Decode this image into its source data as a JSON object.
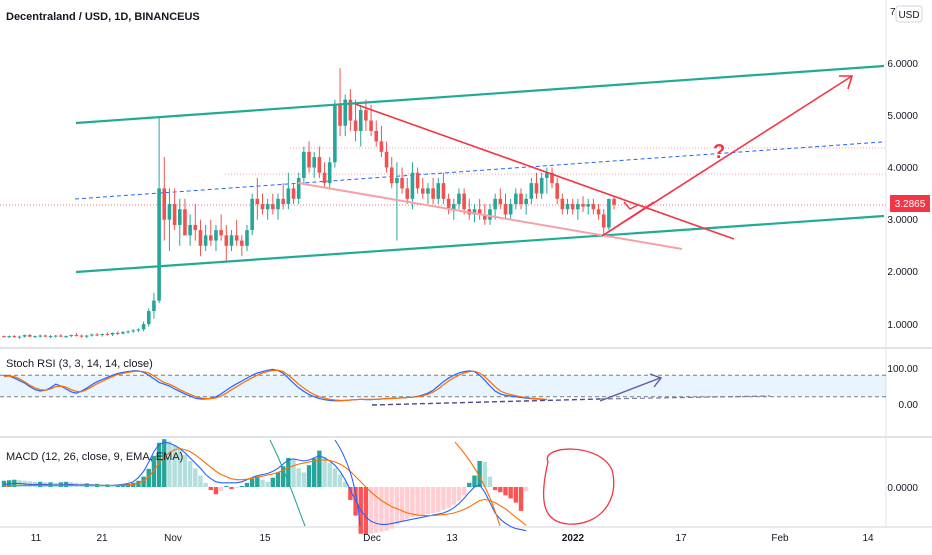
{
  "chart_data": [
    {
      "type": "candlestick",
      "title": "Decentraland / USD, 1D, BINANCEUS",
      "currency_label": "USD",
      "y_ticks": [
        "7",
        "6.0000",
        "5.0000",
        "4.0000",
        "3.0000",
        "2.0000",
        "1.0000"
      ],
      "ylim": [
        0.5,
        7
      ],
      "last_price": "3.2865",
      "x_ticks": [
        "11",
        "21",
        "Nov",
        "15",
        "Dec",
        "13",
        "2022",
        "17",
        "Feb",
        "14"
      ],
      "grid": false,
      "colors": {
        "up": "#26a69a",
        "down": "#ef5350",
        "channel": "#22ab94",
        "triangle": "#f23645",
        "triangle_lower": "#f7a1a7",
        "mid_dash": "#2962ff",
        "price_label_bg": "#f23645"
      },
      "candles": [
        [
          0.77,
          0.78,
          0.74,
          0.76
        ],
        [
          0.76,
          0.78,
          0.73,
          0.77
        ],
        [
          0.77,
          0.79,
          0.74,
          0.75
        ],
        [
          0.75,
          0.78,
          0.72,
          0.76
        ],
        [
          0.76,
          0.8,
          0.74,
          0.79
        ],
        [
          0.79,
          0.81,
          0.75,
          0.76
        ],
        [
          0.76,
          0.78,
          0.73,
          0.77
        ],
        [
          0.77,
          0.8,
          0.74,
          0.78
        ],
        [
          0.78,
          0.8,
          0.75,
          0.76
        ],
        [
          0.76,
          0.79,
          0.73,
          0.77
        ],
        [
          0.77,
          0.79,
          0.74,
          0.78
        ],
        [
          0.78,
          0.81,
          0.75,
          0.76
        ],
        [
          0.76,
          0.78,
          0.73,
          0.77
        ],
        [
          0.77,
          0.8,
          0.75,
          0.79
        ],
        [
          0.79,
          0.83,
          0.76,
          0.78
        ],
        [
          0.78,
          0.8,
          0.74,
          0.76
        ],
        [
          0.76,
          0.79,
          0.73,
          0.78
        ],
        [
          0.78,
          0.82,
          0.76,
          0.8
        ],
        [
          0.8,
          0.83,
          0.77,
          0.79
        ],
        [
          0.79,
          0.82,
          0.76,
          0.81
        ],
        [
          0.81,
          0.84,
          0.78,
          0.8
        ],
        [
          0.8,
          0.84,
          0.77,
          0.83
        ],
        [
          0.83,
          0.86,
          0.79,
          0.82
        ],
        [
          0.82,
          0.86,
          0.8,
          0.85
        ],
        [
          0.85,
          0.88,
          0.82,
          0.86
        ],
        [
          0.86,
          0.9,
          0.83,
          0.88
        ],
        [
          0.88,
          0.92,
          0.85,
          0.9
        ],
        [
          0.9,
          1.05,
          0.86,
          1.0
        ],
        [
          1.0,
          1.3,
          0.95,
          1.25
        ],
        [
          1.25,
          1.6,
          1.1,
          1.45
        ],
        [
          1.45,
          4.95,
          1.4,
          3.6
        ],
        [
          3.6,
          4.2,
          2.6,
          3.0
        ],
        [
          3.0,
          3.6,
          2.4,
          3.3
        ],
        [
          3.3,
          3.6,
          2.8,
          2.9
        ],
        [
          2.9,
          3.4,
          2.5,
          3.2
        ],
        [
          3.2,
          3.4,
          2.7,
          2.7
        ],
        [
          2.7,
          3.1,
          2.5,
          2.9
        ],
        [
          2.9,
          3.3,
          2.6,
          2.8
        ],
        [
          2.8,
          3.0,
          2.3,
          2.5
        ],
        [
          2.5,
          2.9,
          2.4,
          2.7
        ],
        [
          2.7,
          3.0,
          2.5,
          2.6
        ],
        [
          2.6,
          2.9,
          2.4,
          2.8
        ],
        [
          2.8,
          3.1,
          2.6,
          2.7
        ],
        [
          2.7,
          2.9,
          2.2,
          2.5
        ],
        [
          2.5,
          2.8,
          2.4,
          2.7
        ],
        [
          2.7,
          3.0,
          2.5,
          2.6
        ],
        [
          2.6,
          2.7,
          2.3,
          2.5
        ],
        [
          2.5,
          2.9,
          2.4,
          2.8
        ],
        [
          2.8,
          3.5,
          2.7,
          3.4
        ],
        [
          3.4,
          3.8,
          3.0,
          3.3
        ],
        [
          3.3,
          3.5,
          3.1,
          3.2
        ],
        [
          3.2,
          3.4,
          3.0,
          3.3
        ],
        [
          3.3,
          3.5,
          3.1,
          3.2
        ],
        [
          3.2,
          3.5,
          3.0,
          3.4
        ],
        [
          3.4,
          3.7,
          3.2,
          3.3
        ],
        [
          3.3,
          3.9,
          3.2,
          3.6
        ],
        [
          3.6,
          3.7,
          3.3,
          3.4
        ],
        [
          3.4,
          3.9,
          3.3,
          3.8
        ],
        [
          3.8,
          4.4,
          3.7,
          4.3
        ],
        [
          4.3,
          4.5,
          3.9,
          4.0
        ],
        [
          4.0,
          4.3,
          3.8,
          4.2
        ],
        [
          4.2,
          4.4,
          3.8,
          3.9
        ],
        [
          3.9,
          4.1,
          3.6,
          3.7
        ],
        [
          3.7,
          4.2,
          3.6,
          4.1
        ],
        [
          4.1,
          5.3,
          4.0,
          5.2
        ],
        [
          5.2,
          5.9,
          4.6,
          4.8
        ],
        [
          4.8,
          5.4,
          4.6,
          5.3
        ],
        [
          5.3,
          5.5,
          4.7,
          4.9
        ],
        [
          4.9,
          5.3,
          4.5,
          4.7
        ],
        [
          4.7,
          5.2,
          4.4,
          5.1
        ],
        [
          5.1,
          5.3,
          4.7,
          4.9
        ],
        [
          4.9,
          5.2,
          4.6,
          4.7
        ],
        [
          4.7,
          4.9,
          4.4,
          4.5
        ],
        [
          4.5,
          4.8,
          4.2,
          4.3
        ],
        [
          4.3,
          4.5,
          3.9,
          4.0
        ],
        [
          4.0,
          4.2,
          3.6,
          3.7
        ],
        [
          3.7,
          4.1,
          2.6,
          3.8
        ],
        [
          3.8,
          4.0,
          3.5,
          3.6
        ],
        [
          3.6,
          3.8,
          3.3,
          3.4
        ],
        [
          3.4,
          4.1,
          3.2,
          3.9
        ],
        [
          3.9,
          4.0,
          3.5,
          3.6
        ],
        [
          3.6,
          3.8,
          3.4,
          3.5
        ],
        [
          3.5,
          3.7,
          3.3,
          3.6
        ],
        [
          3.6,
          3.8,
          3.3,
          3.4
        ],
        [
          3.4,
          3.8,
          3.3,
          3.7
        ],
        [
          3.7,
          3.9,
          3.3,
          3.4
        ],
        [
          3.4,
          3.5,
          3.1,
          3.2
        ],
        [
          3.2,
          3.4,
          3.0,
          3.3
        ],
        [
          3.3,
          3.6,
          3.2,
          3.5
        ],
        [
          3.5,
          3.6,
          3.1,
          3.2
        ],
        [
          3.2,
          3.4,
          3.0,
          3.1
        ],
        [
          3.1,
          3.3,
          2.95,
          3.2
        ],
        [
          3.2,
          3.4,
          3.0,
          3.1
        ],
        [
          3.1,
          3.3,
          2.9,
          3.0
        ],
        [
          3.0,
          3.3,
          2.9,
          3.2
        ],
        [
          3.2,
          3.5,
          3.0,
          3.4
        ],
        [
          3.4,
          3.6,
          3.2,
          3.3
        ],
        [
          3.3,
          3.5,
          3.0,
          3.1
        ],
        [
          3.1,
          3.4,
          3.0,
          3.3
        ],
        [
          3.3,
          3.6,
          3.2,
          3.5
        ],
        [
          3.5,
          3.6,
          3.2,
          3.3
        ],
        [
          3.3,
          3.5,
          3.1,
          3.4
        ],
        [
          3.4,
          3.8,
          3.3,
          3.7
        ],
        [
          3.7,
          3.9,
          3.4,
          3.5
        ],
        [
          3.5,
          3.9,
          3.4,
          3.8
        ],
        [
          3.8,
          4.0,
          3.5,
          3.9
        ],
        [
          3.9,
          4.0,
          3.6,
          3.7
        ],
        [
          3.7,
          3.8,
          3.3,
          3.4
        ],
        [
          3.4,
          3.5,
          3.1,
          3.2
        ],
        [
          3.2,
          3.4,
          3.1,
          3.3
        ],
        [
          3.3,
          3.4,
          3.1,
          3.2
        ],
        [
          3.2,
          3.4,
          3.0,
          3.3
        ],
        [
          3.3,
          3.45,
          3.15,
          3.25
        ],
        [
          3.25,
          3.4,
          3.1,
          3.3
        ],
        [
          3.3,
          3.4,
          3.1,
          3.2
        ],
        [
          3.2,
          3.3,
          3.0,
          3.1
        ],
        [
          3.1,
          3.2,
          2.7,
          2.85
        ],
        [
          2.85,
          3.4,
          2.8,
          3.4
        ],
        [
          3.4,
          3.45,
          3.2,
          3.2865
        ]
      ],
      "annotations": [
        {
          "type": "text",
          "label": "?",
          "color": "#f23645"
        }
      ]
    },
    {
      "type": "line",
      "title": "Stoch RSI (3, 3, 14, 14, close)",
      "y_ticks": [
        "100.00",
        "0.00"
      ],
      "band": [
        20,
        80
      ],
      "series": [
        {
          "color": "#2962ff",
          "values": [
            80,
            78,
            72,
            65,
            58,
            48,
            40,
            36,
            38,
            45,
            55,
            50,
            42,
            34,
            30,
            36,
            44,
            54,
            62,
            68,
            74,
            80,
            85,
            88,
            90,
            92,
            92,
            88,
            80,
            70,
            60,
            55,
            50,
            42,
            35,
            28,
            22,
            16,
            14,
            14,
            16,
            20,
            28,
            38,
            48,
            56,
            64,
            72,
            80,
            86,
            90,
            94,
            96,
            93,
            85,
            72,
            58,
            45,
            35,
            26,
            20,
            15,
            12,
            10,
            9,
            9,
            10,
            11,
            12,
            13,
            12,
            12,
            13,
            14,
            15,
            16,
            16,
            17,
            18,
            19,
            21,
            25,
            30,
            38,
            50,
            62,
            72,
            80,
            86,
            90,
            92,
            90,
            80,
            66,
            50,
            36,
            28,
            24,
            22,
            20,
            18,
            16,
            15,
            14,
            13,
            12
          ]
        },
        {
          "color": "#ff6d00",
          "values": [
            76,
            78,
            76,
            70,
            62,
            52,
            45,
            40,
            38,
            42,
            48,
            50,
            47,
            40,
            35,
            34,
            40,
            48,
            56,
            63,
            70,
            76,
            82,
            85,
            88,
            90,
            91,
            90,
            86,
            78,
            68,
            60,
            55,
            48,
            40,
            33,
            27,
            21,
            17,
            15,
            15,
            17,
            22,
            30,
            40,
            48,
            57,
            65,
            73,
            80,
            86,
            90,
            93,
            94,
            90,
            80,
            68,
            55,
            44,
            34,
            26,
            20,
            16,
            13,
            11,
            10,
            10,
            11,
            12,
            13,
            13,
            13,
            13,
            14,
            15,
            15,
            16,
            17,
            18,
            19,
            20,
            23,
            27,
            33,
            42,
            53,
            64,
            73,
            80,
            86,
            90,
            91,
            86,
            76,
            62,
            48,
            36,
            30,
            26,
            23,
            20,
            18,
            16,
            15,
            14,
            13
          ]
        }
      ]
    },
    {
      "type": "histogram",
      "title": "MACD (12, 26, close, 9, EMA, EMA)",
      "y_ticks": [
        "0.0000"
      ],
      "colors": {
        "pos_up": "#26a69a",
        "pos_down": "#b2dfdb",
        "neg_down": "#ff5252",
        "neg_up": "#ffcdd2",
        "macd": "#2962ff",
        "signal": "#ff6d00"
      },
      "histogram": [
        0.12,
        0.13,
        0.14,
        0.13,
        0.12,
        0.11,
        0.1,
        0.1,
        0.09,
        0.09,
        0.08,
        0.09,
        0.1,
        0.09,
        0.08,
        0.07,
        0.07,
        0.06,
        0.06,
        0.05,
        0.05,
        0.04,
        0.04,
        0.05,
        0.06,
        0.08,
        0.12,
        0.2,
        0.35,
        0.6,
        0.85,
        0.92,
        0.88,
        0.8,
        0.74,
        0.62,
        0.5,
        0.36,
        0.22,
        0.08,
        -0.06,
        -0.14,
        -0.08,
        0.02,
        -0.04,
        -0.02,
        0.02,
        0.08,
        0.16,
        0.2,
        0.14,
        0.1,
        0.18,
        0.28,
        0.4,
        0.56,
        0.52,
        0.36,
        0.28,
        0.42,
        0.55,
        0.7,
        0.58,
        0.46,
        0.36,
        0.24,
        0.1,
        -0.25,
        -0.55,
        -0.9,
        -0.92,
        -0.9,
        -0.88,
        -0.86,
        -0.84,
        -0.8,
        -0.72,
        -0.66,
        -0.62,
        -0.58,
        -0.56,
        -0.54,
        -0.52,
        -0.5,
        -0.48,
        -0.44,
        -0.4,
        -0.34,
        -0.26,
        -0.16,
        0.08,
        0.22,
        0.5,
        0.48,
        0.2,
        -0.06,
        -0.1,
        -0.16,
        -0.22,
        -0.3,
        -0.46,
        -0.08
      ],
      "macd_line": [
        0.05,
        0.06,
        0.07,
        0.07,
        0.06,
        0.05,
        0.05,
        0.05,
        0.05,
        0.04,
        0.04,
        0.04,
        0.05,
        0.05,
        0.04,
        0.04,
        0.04,
        0.04,
        0.03,
        0.03,
        0.03,
        0.03,
        0.04,
        0.05,
        0.07,
        0.1,
        0.18,
        0.3,
        0.48,
        0.68,
        0.82,
        0.86,
        0.84,
        0.8,
        0.74,
        0.66,
        0.56,
        0.46,
        0.36,
        0.24,
        0.16,
        0.1,
        0.08,
        0.08,
        0.08,
        0.08,
        0.1,
        0.14,
        0.18,
        0.22,
        0.24,
        0.26,
        0.3,
        0.36,
        0.44,
        0.52,
        0.54,
        0.52,
        0.5,
        0.52,
        0.56,
        0.6,
        0.56,
        0.5,
        0.42,
        0.3,
        0.14,
        -0.06,
        -0.26,
        -0.44,
        -0.58,
        -0.66,
        -0.7,
        -0.72,
        -0.72,
        -0.7,
        -0.68,
        -0.66,
        -0.64,
        -0.62,
        -0.6,
        -0.58,
        -0.56,
        -0.54,
        -0.52,
        -0.5,
        -0.46,
        -0.4,
        -0.32,
        -0.22,
        -0.1,
        0.0,
        0.04,
        -0.1,
        -0.3,
        -0.5,
        -0.62,
        -0.7,
        -0.76,
        -0.8,
        -0.82,
        -0.84
      ],
      "signal_line": [
        0.02,
        0.02,
        0.03,
        0.03,
        0.03,
        0.03,
        0.03,
        0.03,
        0.03,
        0.03,
        0.03,
        0.03,
        0.03,
        0.03,
        0.03,
        0.03,
        0.03,
        0.03,
        0.03,
        0.03,
        0.03,
        0.03,
        0.03,
        0.03,
        0.04,
        0.05,
        0.08,
        0.12,
        0.2,
        0.32,
        0.46,
        0.58,
        0.66,
        0.72,
        0.74,
        0.72,
        0.68,
        0.62,
        0.54,
        0.46,
        0.38,
        0.3,
        0.24,
        0.2,
        0.16,
        0.14,
        0.14,
        0.15,
        0.17,
        0.19,
        0.21,
        0.23,
        0.25,
        0.28,
        0.32,
        0.37,
        0.41,
        0.44,
        0.46,
        0.48,
        0.5,
        0.52,
        0.52,
        0.51,
        0.48,
        0.44,
        0.38,
        0.3,
        0.2,
        0.1,
        0.0,
        -0.1,
        -0.18,
        -0.26,
        -0.32,
        -0.38,
        -0.42,
        -0.46,
        -0.5,
        -0.52,
        -0.54,
        -0.55,
        -0.55,
        -0.55,
        -0.54,
        -0.53,
        -0.52,
        -0.5,
        -0.47,
        -0.43,
        -0.38,
        -0.32,
        -0.26,
        -0.24,
        -0.26,
        -0.3,
        -0.36,
        -0.42,
        -0.5,
        -0.58,
        -0.66,
        -0.74
      ]
    }
  ]
}
